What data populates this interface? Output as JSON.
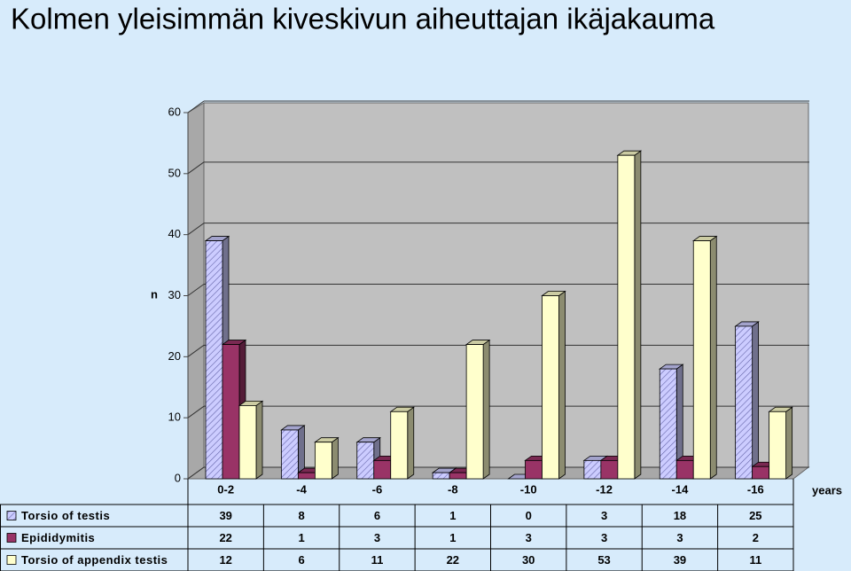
{
  "chart_data": {
    "type": "bar3d",
    "title": "Kolmen yleisimmän kiveskivun aiheuttajan ikäjakauma",
    "ylabel": "n",
    "xlabel": "years",
    "categories": [
      "0-2",
      "-4",
      "-6",
      "-8",
      "-10",
      "-12",
      "-14",
      "-16"
    ],
    "series": [
      {
        "name": "Torsio of testis",
        "color": "#ccccff",
        "hatch": true,
        "values": [
          39,
          8,
          6,
          1,
          0,
          3,
          18,
          25
        ]
      },
      {
        "name": "Epididymitis",
        "color": "#993366",
        "hatch": false,
        "values": [
          22,
          1,
          3,
          1,
          3,
          3,
          3,
          2
        ]
      },
      {
        "name": "Torsio of appendix testis",
        "color": "#ffffcc",
        "hatch": false,
        "values": [
          12,
          6,
          11,
          22,
          30,
          53,
          39,
          11
        ]
      }
    ],
    "ylim": [
      0,
      60
    ],
    "yticks": [
      0,
      10,
      20,
      30,
      40,
      50,
      60
    ],
    "grid": true
  }
}
